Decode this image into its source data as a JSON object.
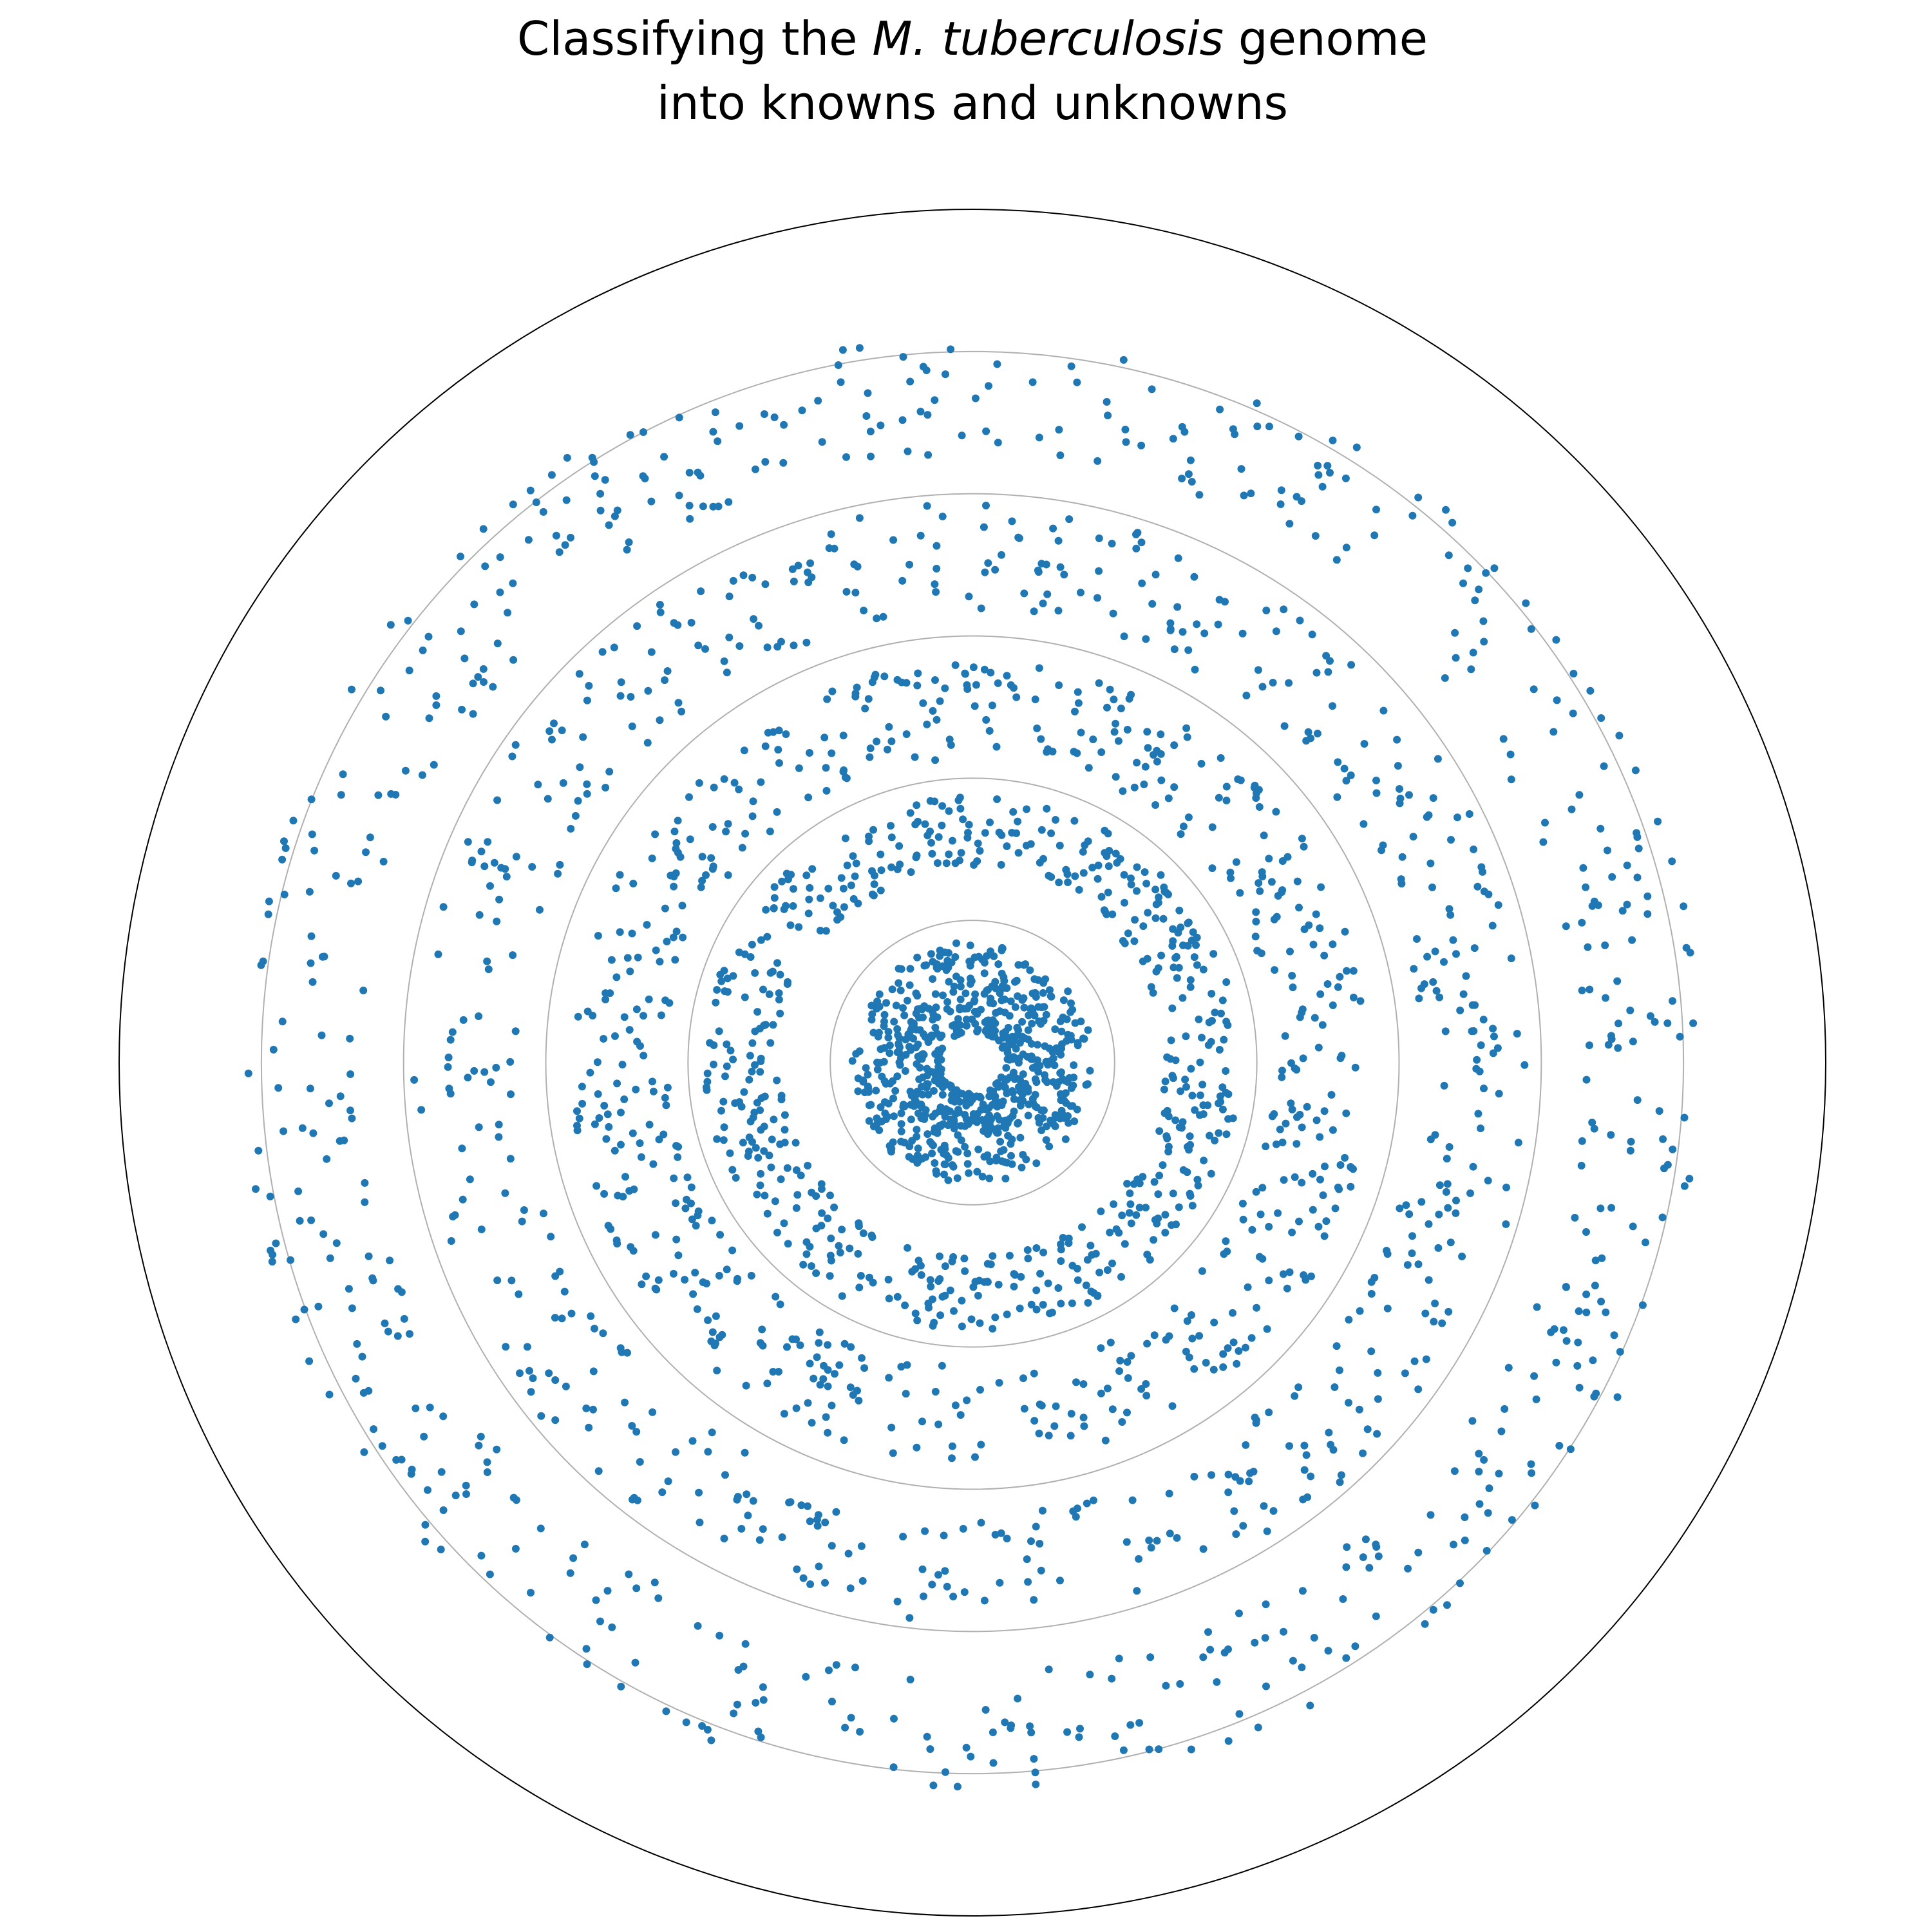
{
  "chart_data": {
    "type": "scatter",
    "coordinate_system": "polar",
    "title_line1": {
      "prefix": "Classifying the ",
      "italic": "M. tuberculosis",
      "suffix": " genome"
    },
    "title_line2": "into knowns and unknowns",
    "radial_gridlines": [
      1,
      2,
      3,
      4,
      5
    ],
    "rlim": [
      0,
      6
    ],
    "grid": true,
    "axis_labels_shown": false,
    "series": [
      {
        "ring": 1,
        "r_center": 0.55,
        "r_spread": 0.3,
        "r_hole": 0.22,
        "points": 720
      },
      {
        "ring": 2,
        "r_center": 1.62,
        "r_spread": 0.26,
        "points": 560
      },
      {
        "ring": 3,
        "r_center": 2.48,
        "r_spread": 0.34,
        "points": 560
      },
      {
        "ring": 4,
        "r_center": 3.55,
        "r_spread": 0.38,
        "points": 520
      },
      {
        "ring": 5,
        "r_center": 4.7,
        "r_spread": 0.42,
        "points": 560
      }
    ],
    "colors": {
      "points": "#1f77b4",
      "gridline": "#b0b0b0",
      "outer_circle": "#000000"
    }
  }
}
